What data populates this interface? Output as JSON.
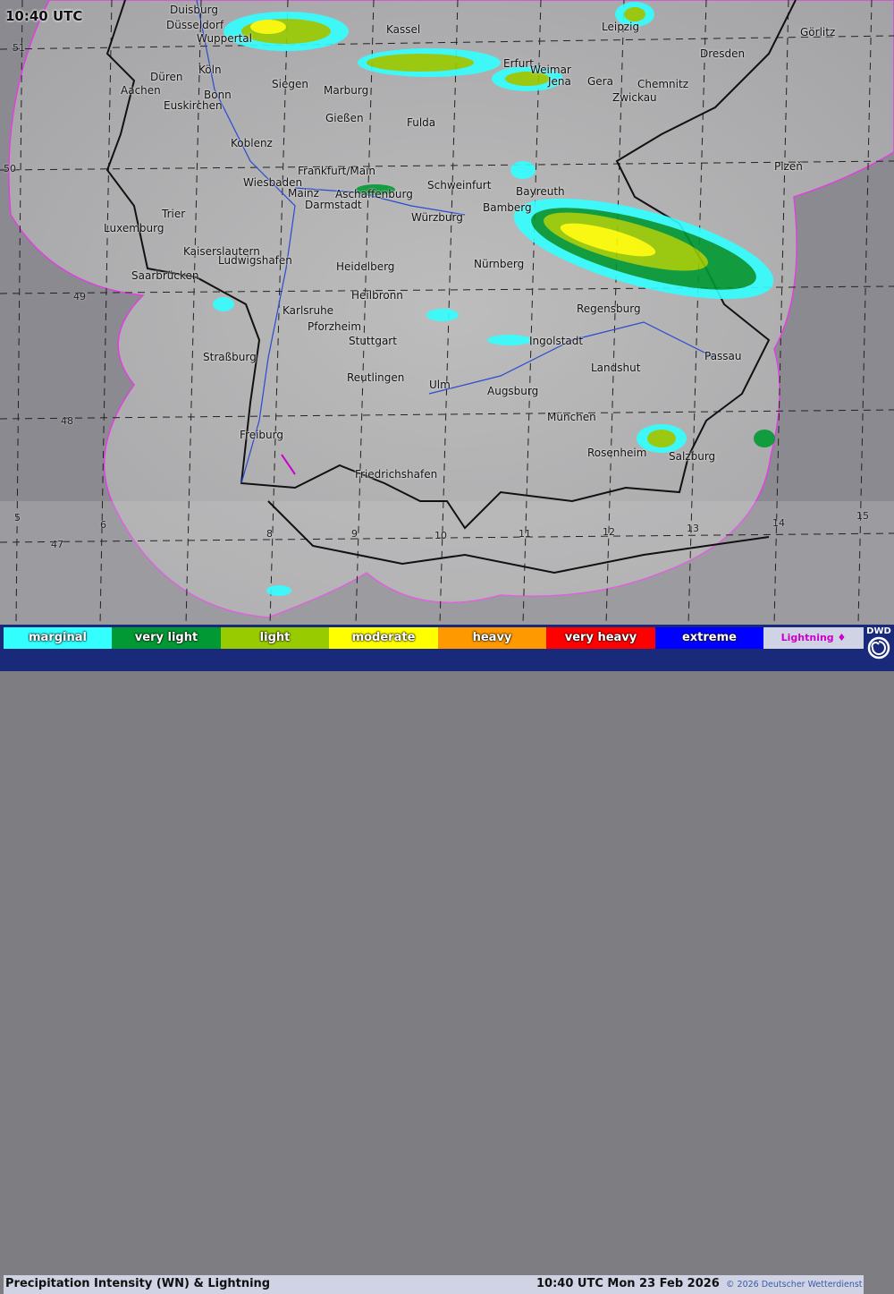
{
  "timestamp_overlay": "10:40 UTC",
  "cities": [
    "Duisburg",
    "Düsseldorf",
    "Wuppertal",
    "Kassel",
    "Leipzig",
    "Görlitz",
    "Dresden",
    "Köln",
    "Düren",
    "Erfurt",
    "Weimar",
    "Jena",
    "Gera",
    "Chemnitz",
    "Aachen",
    "Bonn",
    "Siegen",
    "Marburg",
    "Zwickau",
    "Euskirchen",
    "Gießen",
    "Fulda",
    "Koblenz",
    "Frankfurt/Main",
    "Plzeň",
    "Wiesbaden",
    "Schweinfurt",
    "Bayreuth",
    "Mainz",
    "Aschaffenburg",
    "Darmstadt",
    "Bamberg",
    "Würzburg",
    "Trier",
    "Luxemburg",
    "Kaiserslautern",
    "Ludwigshafen",
    "Nürnberg",
    "Heidelberg",
    "Saarbrücken",
    "Heilbronn",
    "Karlsruhe",
    "Regensburg",
    "Pforzheim",
    "Stuttgart",
    "Ingolstadt",
    "Passau",
    "Straßburg",
    "Landshut",
    "Reutlingen",
    "Ulm",
    "Augsburg",
    "München",
    "Freiburg",
    "Rosenheim",
    "Salzburg",
    "Friedrichshafen"
  ],
  "latitude_labels": [
    "51",
    "50",
    "49",
    "48",
    "47"
  ],
  "longitude_labels": [
    "5",
    "6",
    "8",
    "9",
    "10",
    "11",
    "12",
    "13",
    "14",
    "15"
  ],
  "legend": {
    "items": [
      {
        "label": "marginal",
        "color": "#33ffff"
      },
      {
        "label": "very light",
        "color": "#009933"
      },
      {
        "label": "light",
        "color": "#99cc00"
      },
      {
        "label": "moderate",
        "color": "#ffff00"
      },
      {
        "label": "heavy",
        "color": "#ff9900"
      },
      {
        "label": "very heavy",
        "color": "#ff0000"
      },
      {
        "label": "extreme",
        "color": "#0000ff"
      }
    ],
    "lightning": {
      "label": "Lightning ♦",
      "color": "#cc00cc"
    }
  },
  "footer": {
    "title": "Precipitation Intensity (WN) & Lightning",
    "timestamp": "10:40 UTC Mon 23 Feb 2026",
    "copyright": "© 2026 Deutscher Wetterdienst"
  },
  "logo": {
    "text": "DWD",
    "icon": "dwd-swirl-icon"
  },
  "colors": {
    "coverage_outline": "#e040e0",
    "legend_background": "#1a2a7a"
  }
}
